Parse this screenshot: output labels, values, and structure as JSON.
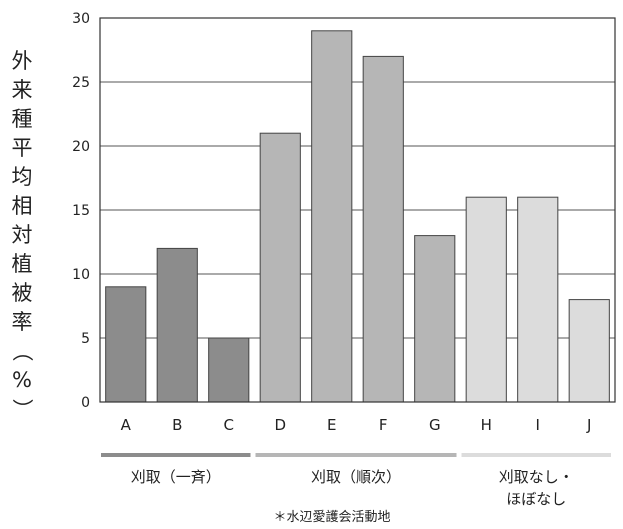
{
  "chart_data": {
    "type": "bar",
    "ylabel": "外来種平均相対植被率（%）",
    "ylim": [
      0,
      30
    ],
    "yticks": [
      0,
      5,
      10,
      15,
      20,
      25,
      30
    ],
    "grid": true,
    "categories": [
      "A",
      "B",
      "C",
      "D",
      "E",
      "F",
      "G",
      "H",
      "I",
      "J"
    ],
    "values": [
      9,
      12,
      5,
      21,
      29,
      27,
      13,
      16,
      16,
      8
    ],
    "bar_colors": [
      "#8c8c8c",
      "#8c8c8c",
      "#8c8c8c",
      "#b6b6b6",
      "#b6b6b6",
      "#b6b6b6",
      "#b6b6b6",
      "#dcdcdc",
      "#dcdcdc",
      "#dcdcdc"
    ],
    "groups": [
      {
        "lines": [
          "刈取（一斉）"
        ],
        "start": 0,
        "end": 2,
        "color": "#8c8c8c"
      },
      {
        "lines": [
          "刈取（順次）"
        ],
        "start": 3,
        "end": 6,
        "color": "#b6b6b6"
      },
      {
        "lines": [
          "刈取なし・",
          "ほぼなし"
        ],
        "start": 7,
        "end": 9,
        "color": "#dcdcdc"
      }
    ],
    "note": "＊水辺愛護会活動地"
  }
}
